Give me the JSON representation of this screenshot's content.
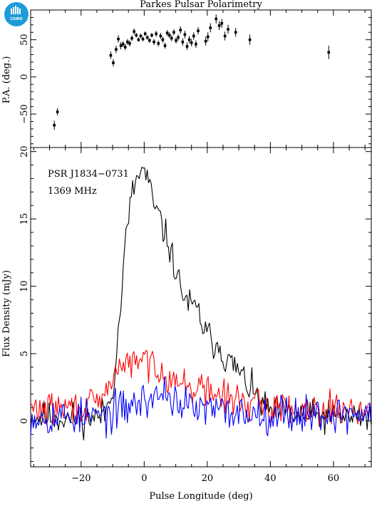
{
  "logo": {
    "text": "CSIRO"
  },
  "chart_data": [
    {
      "type": "scatter",
      "title": "Parkes Pulsar Polarimetry",
      "xlabel": "",
      "ylabel": "P.A. (deg.)",
      "xlim": [
        -36,
        72
      ],
      "ylim": [
        -95,
        90
      ],
      "yticks": [
        -50,
        0,
        50
      ],
      "ytick_labels": [
        "−50",
        "0",
        "50"
      ],
      "series": [
        {
          "points": [
            {
              "x": -28.5,
              "y": -65,
              "err": 6
            },
            {
              "x": -27.5,
              "y": -47,
              "err": 5
            },
            {
              "x": -10.6,
              "y": 29,
              "err": 5
            },
            {
              "x": -9.8,
              "y": 19,
              "err": 5
            },
            {
              "x": -8.9,
              "y": 37,
              "err": 5
            },
            {
              "x": -8.2,
              "y": 51,
              "err": 5
            },
            {
              "x": -7.4,
              "y": 42,
              "err": 5
            },
            {
              "x": -6.7,
              "y": 44,
              "err": 4
            },
            {
              "x": -6.0,
              "y": 40,
              "err": 4
            },
            {
              "x": -5.3,
              "y": 47,
              "err": 4
            },
            {
              "x": -4.6,
              "y": 45,
              "err": 4
            },
            {
              "x": -3.9,
              "y": 52,
              "err": 4
            },
            {
              "x": -3.2,
              "y": 61,
              "err": 4
            },
            {
              "x": -2.5,
              "y": 56,
              "err": 3
            },
            {
              "x": -1.8,
              "y": 50,
              "err": 3
            },
            {
              "x": -1.1,
              "y": 55,
              "err": 3
            },
            {
              "x": -0.4,
              "y": 51,
              "err": 3
            },
            {
              "x": 0.3,
              "y": 58,
              "err": 3
            },
            {
              "x": 1.0,
              "y": 53,
              "err": 3
            },
            {
              "x": 1.7,
              "y": 49,
              "err": 3
            },
            {
              "x": 2.4,
              "y": 56,
              "err": 3
            },
            {
              "x": 3.1,
              "y": 47,
              "err": 4
            },
            {
              "x": 3.8,
              "y": 58,
              "err": 4
            },
            {
              "x": 4.5,
              "y": 45,
              "err": 4
            },
            {
              "x": 5.2,
              "y": 55,
              "err": 4
            },
            {
              "x": 5.9,
              "y": 50,
              "err": 4
            },
            {
              "x": 6.6,
              "y": 42,
              "err": 4
            },
            {
              "x": 7.3,
              "y": 59,
              "err": 4
            },
            {
              "x": 8.0,
              "y": 56,
              "err": 4
            },
            {
              "x": 8.7,
              "y": 52,
              "err": 4
            },
            {
              "x": 9.4,
              "y": 60,
              "err": 4
            },
            {
              "x": 10.1,
              "y": 49,
              "err": 4
            },
            {
              "x": 10.8,
              "y": 53,
              "err": 4
            },
            {
              "x": 11.5,
              "y": 63,
              "err": 5
            },
            {
              "x": 12.2,
              "y": 47,
              "err": 5
            },
            {
              "x": 12.9,
              "y": 57,
              "err": 5
            },
            {
              "x": 13.6,
              "y": 41,
              "err": 5
            },
            {
              "x": 14.3,
              "y": 50,
              "err": 5
            },
            {
              "x": 15.0,
              "y": 46,
              "err": 5
            },
            {
              "x": 15.7,
              "y": 55,
              "err": 5
            },
            {
              "x": 16.4,
              "y": 44,
              "err": 5
            },
            {
              "x": 17.1,
              "y": 62,
              "err": 5
            },
            {
              "x": 19.5,
              "y": 48,
              "err": 6
            },
            {
              "x": 20.2,
              "y": 54,
              "err": 6
            },
            {
              "x": 21.0,
              "y": 66,
              "err": 6
            },
            {
              "x": 22.8,
              "y": 78,
              "err": 6
            },
            {
              "x": 23.8,
              "y": 69,
              "err": 6
            },
            {
              "x": 24.6,
              "y": 72,
              "err": 6
            },
            {
              "x": 25.6,
              "y": 55,
              "err": 6
            },
            {
              "x": 26.6,
              "y": 64,
              "err": 6
            },
            {
              "x": 29.0,
              "y": 60,
              "err": 6
            },
            {
              "x": 33.5,
              "y": 50,
              "err": 7
            },
            {
              "x": 58.5,
              "y": 33,
              "err": 9
            }
          ]
        }
      ]
    },
    {
      "type": "line",
      "title": "",
      "xlabel": "Pulse Longitude (deg)",
      "ylabel": "Flux Density (mJy)",
      "xlim": [
        -36,
        72
      ],
      "ylim": [
        -3.4,
        20.3
      ],
      "xticks": [
        -20,
        0,
        20,
        40,
        60
      ],
      "xtick_labels": [
        "−20",
        "0",
        "20",
        "40",
        "60"
      ],
      "yticks": [
        0,
        5,
        10,
        15,
        20
      ],
      "ytick_labels": [
        "0",
        "5",
        "10",
        "15",
        "20"
      ],
      "annotations": [
        "PSR J1834−0731",
        "1369 MHz"
      ],
      "series": [
        {
          "color": "#000000",
          "component": "total",
          "base": [
            [
              -36,
              0.3
            ],
            [
              -20,
              0.2
            ],
            [
              -14,
              0.3
            ],
            [
              -12,
              0.8
            ],
            [
              -10,
              2.5
            ],
            [
              -9,
              4.5
            ],
            [
              -8,
              7.0
            ],
            [
              -7,
              10
            ],
            [
              -6,
              13.0
            ],
            [
              -5,
              15.2
            ],
            [
              -4,
              16.5
            ],
            [
              -3,
              17.6
            ],
            [
              -2,
              18.1
            ],
            [
              -1,
              18.4
            ],
            [
              0,
              18.6
            ],
            [
              1,
              18.0
            ],
            [
              2,
              17.0
            ],
            [
              3,
              16.0
            ],
            [
              4,
              15.5
            ],
            [
              5,
              15.0
            ],
            [
              6,
              14.2
            ],
            [
              7,
              13.6
            ],
            [
              8,
              13.0
            ],
            [
              9,
              12.0
            ],
            [
              10,
              11.2
            ],
            [
              11,
              10.3
            ],
            [
              12,
              9.6
            ],
            [
              13,
              9.2
            ],
            [
              14,
              8.7
            ],
            [
              15,
              8.5
            ],
            [
              16,
              8.3
            ],
            [
              17,
              8.2
            ],
            [
              18,
              7.5
            ],
            [
              19,
              6.8
            ],
            [
              20,
              6.3
            ],
            [
              21,
              6.2
            ],
            [
              22,
              5.8
            ],
            [
              23,
              5.8
            ],
            [
              24,
              5.6
            ],
            [
              25,
              4.9
            ],
            [
              26,
              4.6
            ],
            [
              27,
              4.3
            ],
            [
              28,
              4.2
            ],
            [
              29,
              4.0
            ],
            [
              30,
              3.6
            ],
            [
              31,
              3.3
            ],
            [
              32,
              3.0
            ],
            [
              33,
              2.6
            ],
            [
              34,
              2.3
            ],
            [
              35,
              2.0
            ],
            [
              36,
              1.6
            ],
            [
              38,
              1.1
            ],
            [
              40,
              0.7
            ],
            [
              44,
              0.5
            ],
            [
              50,
              0.3
            ],
            [
              72,
              0.3
            ]
          ],
          "noise": 0.85,
          "seed": 11
        },
        {
          "color": "#ff0000",
          "component": "linear",
          "base": [
            [
              -36,
              0.9
            ],
            [
              -20,
              1.0
            ],
            [
              -14,
              1.3
            ],
            [
              -12,
              2.0
            ],
            [
              -10,
              3.5
            ],
            [
              -8,
              4.0
            ],
            [
              -6,
              4.2
            ],
            [
              -4,
              4.3
            ],
            [
              -2,
              4.3
            ],
            [
              0,
              4.6
            ],
            [
              2,
              4.3
            ],
            [
              4,
              4.0
            ],
            [
              6,
              3.7
            ],
            [
              8,
              3.3
            ],
            [
              10,
              3.0
            ],
            [
              12,
              2.7
            ],
            [
              14,
              2.5
            ],
            [
              16,
              2.5
            ],
            [
              18,
              2.4
            ],
            [
              20,
              2.2
            ],
            [
              24,
              1.9
            ],
            [
              28,
              1.6
            ],
            [
              32,
              1.4
            ],
            [
              36,
              1.2
            ],
            [
              44,
              1.0
            ],
            [
              72,
              0.9
            ]
          ],
          "noise": 0.85,
          "seed": 29
        },
        {
          "color": "#0000ff",
          "component": "circular",
          "base": [
            [
              -36,
              0.4
            ],
            [
              -20,
              0.3
            ],
            [
              -12,
              0.4
            ],
            [
              -8,
              0.8
            ],
            [
              -4,
              1.2
            ],
            [
              0,
              1.5
            ],
            [
              4,
              1.8
            ],
            [
              6,
              2.2
            ],
            [
              8,
              2.0
            ],
            [
              10,
              1.5
            ],
            [
              14,
              1.0
            ],
            [
              20,
              0.8
            ],
            [
              30,
              0.6
            ],
            [
              72,
              0.5
            ]
          ],
          "noise": 1.0,
          "seed": 53
        }
      ]
    }
  ]
}
